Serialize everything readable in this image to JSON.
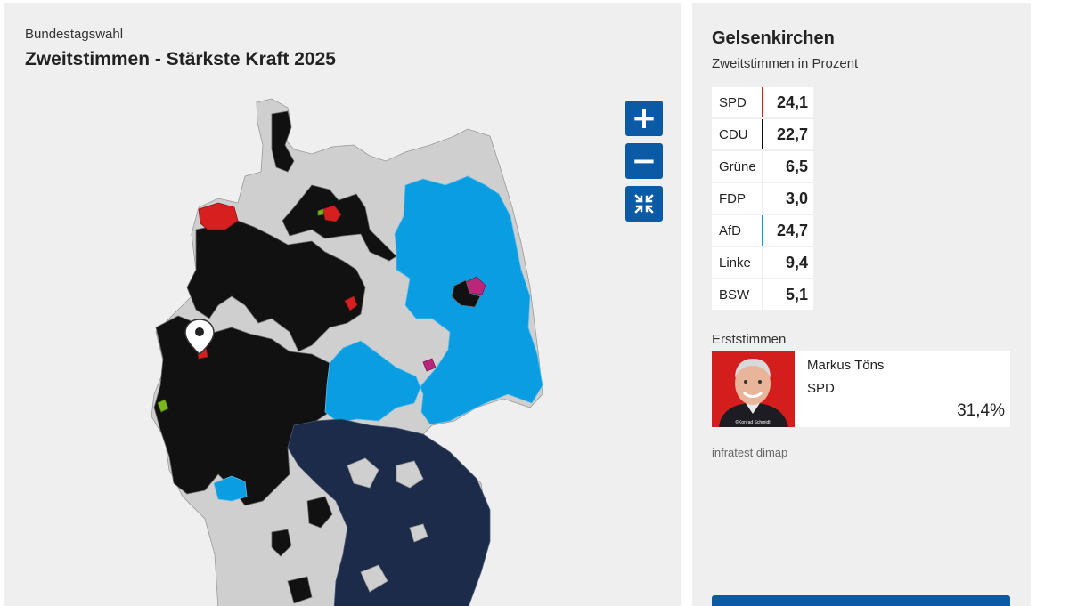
{
  "map": {
    "kicker": "Bundestagswahl",
    "title": "Zweitstimmen - Stärkste Kraft 2025",
    "zoom_in_icon": "plus-icon",
    "zoom_out_icon": "minus-icon",
    "reset_icon": "collapse-arrows-icon",
    "pin_icon": "location-pin-icon",
    "colors": {
      "spd": "#d71f1f",
      "cdu": "#111111",
      "afd": "#0a9de2",
      "csu": "#1c2b4a",
      "gruene": "#7ab51d",
      "linke": "#b8287a",
      "other": "#cfcfcf",
      "boundary": "#888888"
    }
  },
  "result": {
    "city": "Gelsenkirchen",
    "subtitle": "Zweitstimmen in Prozent",
    "parties": [
      {
        "name": "SPD",
        "value": "24,1",
        "pct": 24.1,
        "color": "#d71f1f"
      },
      {
        "name": "CDU",
        "value": "22,7",
        "pct": 22.7,
        "color": "#111111"
      },
      {
        "name": "Grüne",
        "value": "6,5",
        "pct": 6.5,
        "color": "#7ab51d"
      },
      {
        "name": "FDP",
        "value": "3,0",
        "pct": 3.0,
        "color": "#f6c400"
      },
      {
        "name": "AfD",
        "value": "24,7",
        "pct": 24.7,
        "color": "#0a9de2"
      },
      {
        "name": "Linke",
        "value": "9,4",
        "pct": 9.4,
        "color": "#b8287a"
      },
      {
        "name": "BSW",
        "value": "5,1",
        "pct": 5.1,
        "color": "#6b1340"
      }
    ]
  },
  "erststimmen": {
    "label": "Erststimmen",
    "candidate": "Markus Töns",
    "party": "SPD",
    "percent": "31,4%",
    "photo_credit": "©Konrad Schmidt"
  },
  "source": "infratest dimap"
}
